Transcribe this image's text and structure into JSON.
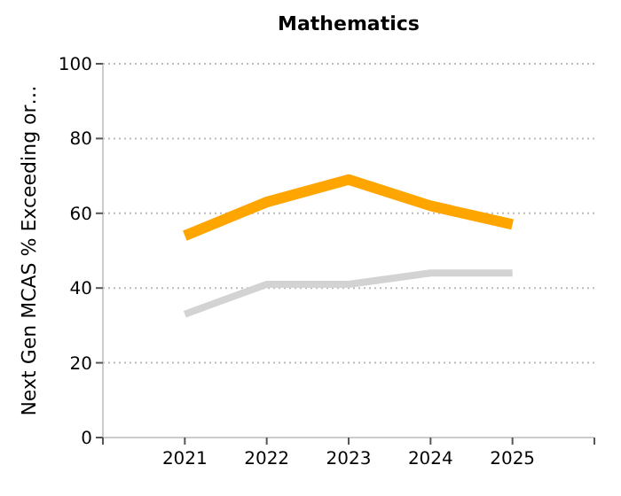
{
  "chart_data": {
    "type": "line",
    "title": "Mathematics",
    "ylabel": "Next Gen MCAS % Exceeding or…",
    "categories": [
      "2021",
      "2022",
      "2023",
      "2024",
      "2025"
    ],
    "series": [
      {
        "color": "#ffa500",
        "values": [
          54,
          63,
          69,
          62,
          57
        ]
      },
      {
        "color": "#d3d3d3",
        "values": [
          33,
          41,
          41,
          44,
          44
        ]
      }
    ],
    "ylim": [
      0,
      100
    ],
    "yticks": [
      0,
      20,
      40,
      60,
      80,
      100
    ],
    "grid": "y",
    "marker": "none",
    "line_style": "solid"
  }
}
